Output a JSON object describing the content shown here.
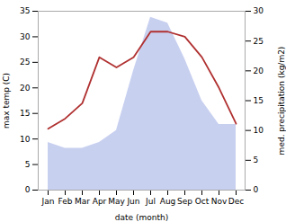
{
  "chart_data": {
    "type": "line",
    "xlabel": "date (month)",
    "ylabel": "max temp (C)",
    "y2label": "med. precipitation (kg/m2)",
    "categories": [
      "Jan",
      "Feb",
      "Mar",
      "Apr",
      "May",
      "Jun",
      "Jul",
      "Aug",
      "Sep",
      "Oct",
      "Nov",
      "Dec"
    ],
    "series": [
      {
        "type": "area",
        "axis": "y2",
        "color": "#c8d0f0",
        "values": [
          8,
          7,
          7,
          8,
          10,
          20,
          29,
          28,
          22,
          15,
          11,
          11
        ]
      },
      {
        "type": "line",
        "color": "#b03030",
        "values": [
          12,
          14,
          17,
          26,
          24,
          26,
          31,
          31,
          30,
          26,
          20,
          13
        ]
      }
    ],
    "ylim": [
      0,
      35
    ],
    "yticks": [
      0,
      5,
      10,
      15,
      20,
      25,
      30,
      35
    ],
    "y2lim": [
      0,
      30
    ],
    "y2ticks": [
      0,
      5,
      10,
      15,
      20,
      25,
      30
    ],
    "grid": false
  }
}
